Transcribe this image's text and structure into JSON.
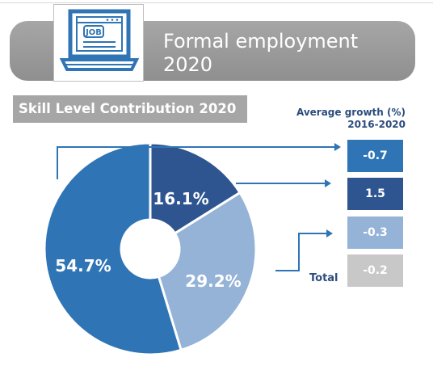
{
  "header": {
    "title_line1": "Formal employment",
    "title_line2": "2020",
    "icon_text": "JOB",
    "icon": "laptop-job-icon"
  },
  "subtitle": "Skill Level Contribution 2020",
  "growth_header_line1": "Average growth (%)",
  "growth_header_line2": "2016-2020",
  "total_label": "Total",
  "colors": {
    "banner": "#999999",
    "seg1": "#2f74b5",
    "seg2": "#2e5590",
    "seg3": "#95b3d7",
    "total": "#c8c8c8",
    "text_dark": "#2b4c7e"
  },
  "chart_data": {
    "type": "pie",
    "title": "Skill Level Contribution 2020",
    "slices": [
      {
        "label": "54.7%",
        "value": 54.7,
        "color": "#2f74b5",
        "growth": "-0.7"
      },
      {
        "label": "16.1%",
        "value": 16.1,
        "color": "#2e5590",
        "growth": "1.5"
      },
      {
        "label": "29.2%",
        "value": 29.2,
        "color": "#95b3d7",
        "growth": "-0.3"
      }
    ],
    "total_growth": "-0.2",
    "donut": true
  }
}
